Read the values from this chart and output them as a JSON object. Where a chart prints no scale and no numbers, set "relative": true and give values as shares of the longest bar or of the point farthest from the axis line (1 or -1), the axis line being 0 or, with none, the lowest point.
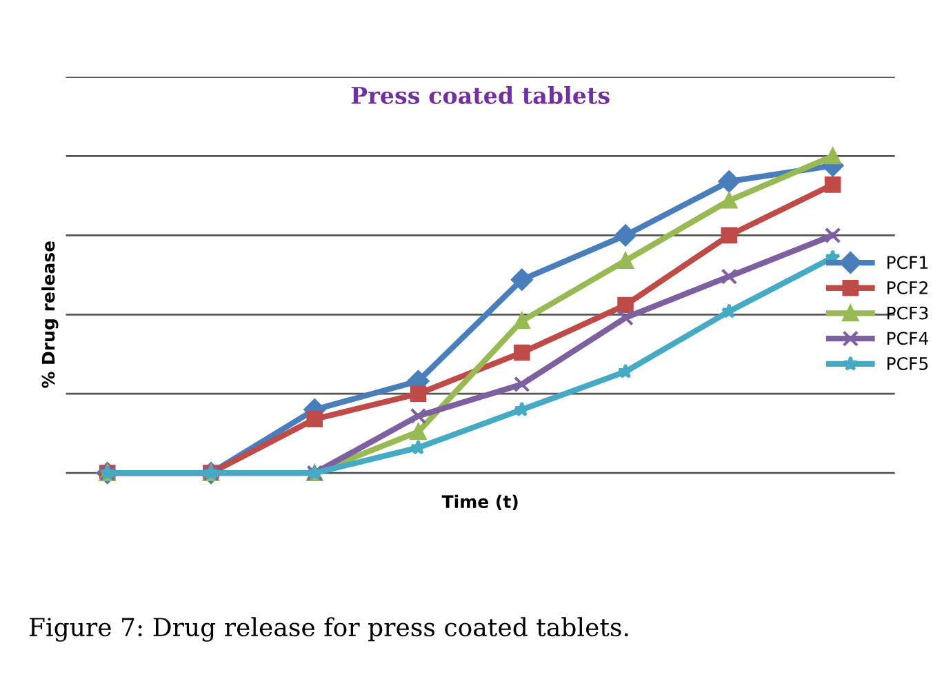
{
  "chart_data": {
    "type": "line",
    "title": "Press coated tablets",
    "xlabel": "Time (t)",
    "ylabel": "% Drug release",
    "categories": [
      null,
      null,
      null,
      null,
      null,
      null,
      null,
      null
    ],
    "relative": true,
    "grid": "y",
    "legend": "right",
    "tick_labels": false,
    "series": [
      {
        "name": "PCF1",
        "color": "#4a7ebb",
        "marker": "diamond",
        "values": [
          0,
          0,
          0.2,
          0.29,
          0.61,
          0.75,
          0.92,
          0.97
        ]
      },
      {
        "name": "PCF2",
        "color": "#be4b48",
        "marker": "square",
        "values": [
          0,
          0,
          0.17,
          0.25,
          0.38,
          0.53,
          0.75,
          0.91
        ]
      },
      {
        "name": "PCF3",
        "color": "#98b954",
        "marker": "triangle",
        "values": [
          0,
          0,
          0,
          0.13,
          0.48,
          0.67,
          0.86,
          1
        ]
      },
      {
        "name": "PCF4",
        "color": "#7d60a0",
        "marker": "cross",
        "values": [
          0,
          0,
          0,
          0.18,
          0.28,
          0.49,
          0.62,
          0.75
        ]
      },
      {
        "name": "PCF5",
        "color": "#46aac5",
        "marker": "star",
        "values": [
          0,
          0,
          0,
          0.08,
          0.2,
          0.32,
          0.51,
          0.68
        ]
      }
    ],
    "annotations": [
      "Figure 7: Drug release for press coated tablets."
    ]
  }
}
